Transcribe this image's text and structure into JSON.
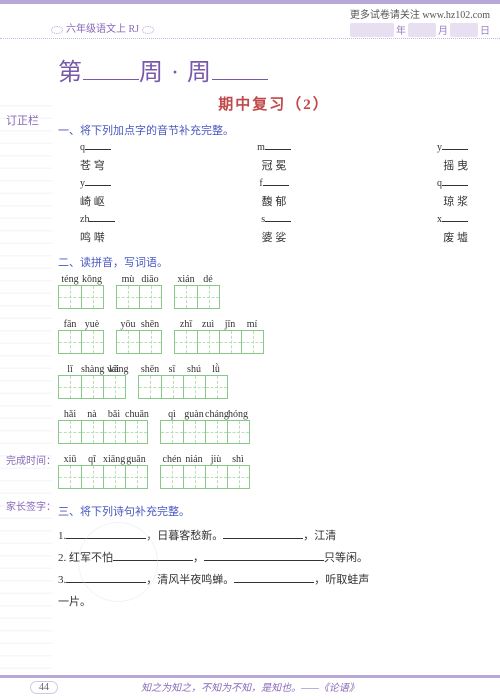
{
  "url": "更多试卷请关注 www.hz102.com",
  "date_labels": [
    "年",
    "月",
    "日"
  ],
  "grade_badge": "六年级语文上 RJ",
  "sidebar_title": "订正栏",
  "title": {
    "char1": "第",
    "mid": "周 · 周"
  },
  "subtitle": "期中复习（2）",
  "sec1": "一、将下列加点字的音节补充完整。",
  "sec1_rows": [
    {
      "py": [
        "q",
        "m",
        "y"
      ],
      "han": [
        "苍 穹",
        "冠 冕",
        "摇 曳"
      ]
    },
    {
      "py": [
        "y",
        "f",
        "q"
      ],
      "han": [
        "崎 岖",
        "馥 郁",
        "琼 浆"
      ]
    },
    {
      "py": [
        "zh",
        "s",
        "x"
      ],
      "han": [
        "鸣 啭",
        "婆 娑",
        "废 墟"
      ]
    }
  ],
  "sec2": "二、读拼音，写词语。",
  "sec2_words": [
    [
      [
        "téng",
        "kōng"
      ],
      [
        "mù",
        "diāo"
      ],
      [
        "xián",
        "dé"
      ]
    ],
    [
      [
        "fān",
        "yuè"
      ],
      [
        "yōu",
        "shēn"
      ],
      [
        "zhī",
        "zuì",
        "jīn",
        "mí"
      ]
    ],
    [
      [
        "lǐ",
        "shàng wǎng",
        "lái"
      ],
      [
        "shēn",
        "sī",
        "shú",
        "lǜ"
      ]
    ],
    [
      [
        "hǎi",
        "nà",
        "bǎi",
        "chuān"
      ],
      [
        "qì",
        "guàn",
        "cháng",
        "hóng"
      ]
    ],
    [
      [
        "xiū",
        "qī",
        "xiāng",
        "guān"
      ],
      [
        "chén",
        "nián",
        "jiù",
        "shì"
      ]
    ]
  ],
  "side_labels": {
    "done": "完成时间：",
    "sign": "家长签字："
  },
  "sec3": "三、将下列诗句补充完整。",
  "poems": [
    {
      "n": "1.",
      "a": "",
      "b": "，日暮客愁新。",
      "c": "",
      "d": "，江清"
    },
    {
      "n": "2. 红军不怕",
      "a": "",
      "b": "，",
      "c": "",
      "d": "只等闲。"
    },
    {
      "n": "3.",
      "a": "",
      "b": "，清风半夜鸣蝉。",
      "c": "",
      "d": "，听取蛙声"
    },
    {
      "n": "   一片。",
      "a": "",
      "b": "",
      "c": "",
      "d": ""
    }
  ],
  "page": "44",
  "quote": "知之为知之，不知为不知，是知也。——《论语》",
  "colors": {
    "purple": "#8868b8",
    "red": "#c04848",
    "blue": "#4858c0",
    "green": "#88c888"
  }
}
